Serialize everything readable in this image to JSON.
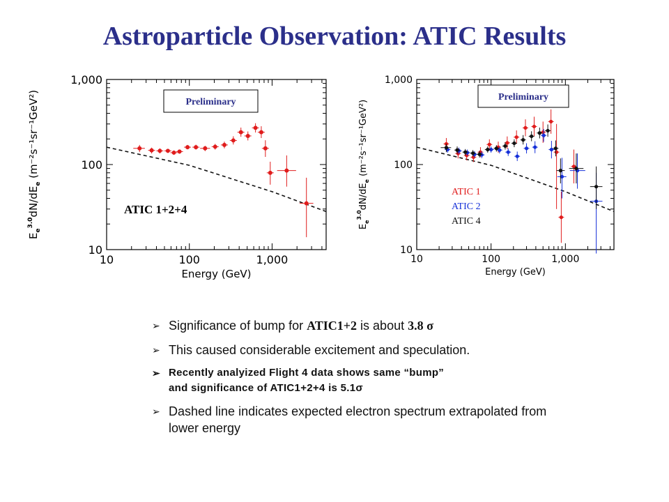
{
  "title": "Astroparticle Observation:  ATIC Results",
  "chart_data": [
    {
      "type": "scatter",
      "xlabel": "Energy  (GeV)",
      "ylabel": "E_e^3.0 dN/dE_e  (m^-2 s^-1 sr^-1 GeV^2)",
      "ylabel_parts": {
        "E": "E",
        "sub1": "e",
        "sup": "3.0",
        "mid": "dN/dE",
        "sub2": "e",
        "units": "  (m⁻²s⁻¹sr⁻¹GeV²)"
      },
      "xscale": "log",
      "yscale": "log",
      "xlim": [
        10,
        4500
      ],
      "ylim": [
        10,
        1000
      ],
      "xticks": [
        10,
        100,
        1000
      ],
      "xtick_labels": [
        "10",
        "100",
        "1,000"
      ],
      "yticks": [
        10,
        100,
        1000
      ],
      "ytick_labels": [
        "10",
        "100",
        "1,000"
      ],
      "box_label": "Preliminary",
      "text_label": "ATIC 1+2+4",
      "dashed_curve": {
        "x": [
          10,
          100,
          1000,
          4500
        ],
        "y": [
          160,
          98,
          48,
          28
        ]
      },
      "series": [
        {
          "name": "ATIC 1+2+4",
          "color": "#e01c1c",
          "points": [
            {
              "x": 25,
              "y": 155,
              "ylo": 140,
              "yhi": 170,
              "xlo": 21,
              "xhi": 29
            },
            {
              "x": 35,
              "y": 147,
              "ylo": 135,
              "yhi": 158
            },
            {
              "x": 44,
              "y": 145,
              "ylo": 135,
              "yhi": 155
            },
            {
              "x": 55,
              "y": 145,
              "ylo": 137,
              "yhi": 153
            },
            {
              "x": 65,
              "y": 138,
              "ylo": 130,
              "yhi": 146
            },
            {
              "x": 76,
              "y": 142,
              "ylo": 134,
              "yhi": 150
            },
            {
              "x": 95,
              "y": 160,
              "ylo": 151,
              "yhi": 170
            },
            {
              "x": 120,
              "y": 160,
              "ylo": 150,
              "yhi": 171
            },
            {
              "x": 155,
              "y": 155,
              "ylo": 144,
              "yhi": 166,
              "xlo": 135,
              "xhi": 178
            },
            {
              "x": 205,
              "y": 162,
              "ylo": 150,
              "yhi": 175
            },
            {
              "x": 265,
              "y": 170,
              "ylo": 155,
              "yhi": 186
            },
            {
              "x": 340,
              "y": 192,
              "ylo": 172,
              "yhi": 215
            },
            {
              "x": 420,
              "y": 240,
              "ylo": 212,
              "yhi": 272
            },
            {
              "x": 510,
              "y": 217,
              "ylo": 192,
              "yhi": 245
            },
            {
              "x": 630,
              "y": 270,
              "ylo": 238,
              "yhi": 306
            },
            {
              "x": 740,
              "y": 240,
              "ylo": 205,
              "yhi": 282
            },
            {
              "x": 830,
              "y": 155,
              "ylo": 123,
              "yhi": 193
            },
            {
              "x": 950,
              "y": 80,
              "ylo": 58,
              "yhi": 108
            },
            {
              "x": 1500,
              "y": 85,
              "ylo": 55,
              "yhi": 128,
              "xlo": 1150,
              "xhi": 1950
            },
            {
              "x": 2600,
              "y": 35,
              "ylo": 14,
              "yhi": 70,
              "xlo": 2150,
              "xhi": 3150
            }
          ]
        }
      ]
    },
    {
      "type": "scatter",
      "xlabel": "Energy  (GeV)",
      "ylabel": "E_e^3.0 dN/dE_e  (m^-2 s^-1 sr^-1 GeV^2)",
      "ylabel_parts": {
        "E": "E",
        "sub1": "e",
        "sup": "3.0",
        "mid": "dN/dE",
        "sub2": "e",
        "units": "  (m⁻²s⁻¹sr⁻¹GeV²)"
      },
      "xscale": "log",
      "yscale": "log",
      "xlim": [
        10,
        4500
      ],
      "ylim": [
        10,
        1000
      ],
      "xticks": [
        10,
        100,
        1000
      ],
      "xtick_labels": [
        "10",
        "100",
        "1,000"
      ],
      "yticks": [
        10,
        100,
        1000
      ],
      "ytick_labels": [
        "10",
        "100",
        "1,000"
      ],
      "box_label": "Preliminary",
      "legend": [
        "ATIC 1",
        "ATIC 2",
        "ATIC 4"
      ],
      "dashed_curve": {
        "x": [
          10,
          100,
          1000,
          4500
        ],
        "y": [
          160,
          98,
          48,
          28
        ]
      },
      "series": [
        {
          "name": "ATIC 1",
          "color": "#e01c1c",
          "points": [
            {
              "x": 25,
              "y": 175,
              "ylo": 150,
              "yhi": 205
            },
            {
              "x": 36,
              "y": 135,
              "ylo": 118,
              "yhi": 155
            },
            {
              "x": 47,
              "y": 128,
              "ylo": 112,
              "yhi": 146
            },
            {
              "x": 58,
              "y": 122,
              "ylo": 107,
              "yhi": 140
            },
            {
              "x": 72,
              "y": 140,
              "ylo": 122,
              "yhi": 160
            },
            {
              "x": 95,
              "y": 172,
              "ylo": 150,
              "yhi": 198
            },
            {
              "x": 125,
              "y": 160,
              "ylo": 138,
              "yhi": 186
            },
            {
              "x": 165,
              "y": 180,
              "ylo": 152,
              "yhi": 214
            },
            {
              "x": 220,
              "y": 210,
              "ylo": 175,
              "yhi": 252
            },
            {
              "x": 290,
              "y": 270,
              "ylo": 215,
              "yhi": 340
            },
            {
              "x": 380,
              "y": 280,
              "ylo": 215,
              "yhi": 365
            },
            {
              "x": 500,
              "y": 240,
              "ylo": 180,
              "yhi": 320
            },
            {
              "x": 640,
              "y": 320,
              "ylo": 230,
              "yhi": 445
            },
            {
              "x": 760,
              "y": 140,
              "ylo": 30,
              "yhi": 300
            },
            {
              "x": 880,
              "y": 24,
              "ylo": 12,
              "yhi": 48
            },
            {
              "x": 1300,
              "y": 95,
              "ylo": 60,
              "yhi": 150
            }
          ]
        },
        {
          "name": "ATIC 2",
          "color": "#1530d8",
          "points": [
            {
              "x": 26,
              "y": 150,
              "ylo": 138,
              "yhi": 163
            },
            {
              "x": 37,
              "y": 145,
              "ylo": 133,
              "yhi": 158
            },
            {
              "x": 48,
              "y": 138,
              "ylo": 127,
              "yhi": 150
            },
            {
              "x": 60,
              "y": 132,
              "ylo": 121,
              "yhi": 144
            },
            {
              "x": 75,
              "y": 130,
              "ylo": 119,
              "yhi": 142
            },
            {
              "x": 100,
              "y": 150,
              "ylo": 138,
              "yhi": 163
            },
            {
              "x": 130,
              "y": 148,
              "ylo": 135,
              "yhi": 162
            },
            {
              "x": 170,
              "y": 140,
              "ylo": 126,
              "yhi": 155
            },
            {
              "x": 225,
              "y": 125,
              "ylo": 110,
              "yhi": 142
            },
            {
              "x": 300,
              "y": 155,
              "ylo": 135,
              "yhi": 178
            },
            {
              "x": 390,
              "y": 160,
              "ylo": 136,
              "yhi": 188
            },
            {
              "x": 510,
              "y": 220,
              "ylo": 185,
              "yhi": 262
            },
            {
              "x": 650,
              "y": 150,
              "ylo": 118,
              "yhi": 190
            },
            {
              "x": 900,
              "y": 72,
              "ylo": 40,
              "yhi": 120,
              "xlo": 780,
              "xhi": 1030
            },
            {
              "x": 1450,
              "y": 85,
              "ylo": 52,
              "yhi": 135,
              "xlo": 1150,
              "xhi": 1850
            },
            {
              "x": 2600,
              "y": 37,
              "ylo": 9,
              "yhi": 80,
              "xlo": 2150,
              "xhi": 3150
            }
          ]
        },
        {
          "name": "ATIC 4",
          "color": "#111111",
          "points": [
            {
              "x": 25,
              "y": 158,
              "ylo": 140,
              "yhi": 176,
              "xlo": 21,
              "xhi": 29
            },
            {
              "x": 35,
              "y": 148,
              "ylo": 134,
              "yhi": 163
            },
            {
              "x": 45,
              "y": 140,
              "ylo": 128,
              "yhi": 152
            },
            {
              "x": 57,
              "y": 136,
              "ylo": 125,
              "yhi": 148
            },
            {
              "x": 70,
              "y": 132,
              "ylo": 121,
              "yhi": 144
            },
            {
              "x": 90,
              "y": 150,
              "ylo": 138,
              "yhi": 163
            },
            {
              "x": 118,
              "y": 155,
              "ylo": 142,
              "yhi": 169
            },
            {
              "x": 155,
              "y": 165,
              "ylo": 150,
              "yhi": 182
            },
            {
              "x": 205,
              "y": 178,
              "ylo": 160,
              "yhi": 198
            },
            {
              "x": 270,
              "y": 195,
              "ylo": 172,
              "yhi": 222
            },
            {
              "x": 350,
              "y": 215,
              "ylo": 188,
              "yhi": 246
            },
            {
              "x": 450,
              "y": 235,
              "ylo": 203,
              "yhi": 272
            },
            {
              "x": 580,
              "y": 250,
              "ylo": 212,
              "yhi": 296
            },
            {
              "x": 740,
              "y": 155,
              "ylo": 125,
              "yhi": 192
            },
            {
              "x": 860,
              "y": 85,
              "ylo": 60,
              "yhi": 118,
              "xlo": 760,
              "xhi": 980
            },
            {
              "x": 1400,
              "y": 90,
              "ylo": 60,
              "yhi": 135,
              "xlo": 1120,
              "xhi": 1750
            },
            {
              "x": 2600,
              "y": 55,
              "ylo": 30,
              "yhi": 95,
              "xlo": 2150,
              "xhi": 3150
            }
          ]
        }
      ]
    }
  ],
  "bullets": {
    "b1": {
      "a": "Significance of bump for ",
      "b": "ATIC1+2",
      "c": " is about ",
      "d": "3.8 σ"
    },
    "b2": "This caused considerable excitement and speculation.",
    "b3a": "Recently analyized Flight 4 data shows same “bump”",
    "b3b": "and significance of  ATIC1+2+4 is 5.1σ",
    "b4": "Dashed line indicates expected electron spectrum extrapolated from lower energy"
  }
}
